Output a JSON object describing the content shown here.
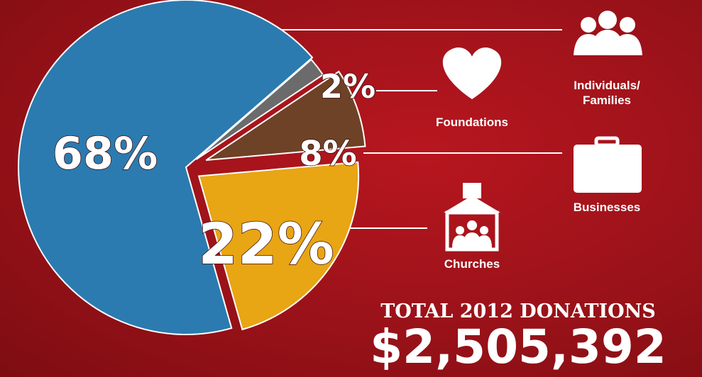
{
  "chart_data": {
    "type": "pie",
    "categories": [
      "Foundations",
      "Businesses",
      "Churches",
      "Individuals/ Families"
    ],
    "values": [
      2,
      8,
      22,
      68
    ],
    "value_labels": [
      "2%",
      "8%",
      "22%",
      "68%"
    ],
    "colors": [
      "#6b6b6b",
      "#6e4226",
      "#e8a514",
      "#2b7bb0"
    ],
    "total_label": "TOTAL 2012 DONATIONS",
    "total_value": "$2,505,392"
  }
}
